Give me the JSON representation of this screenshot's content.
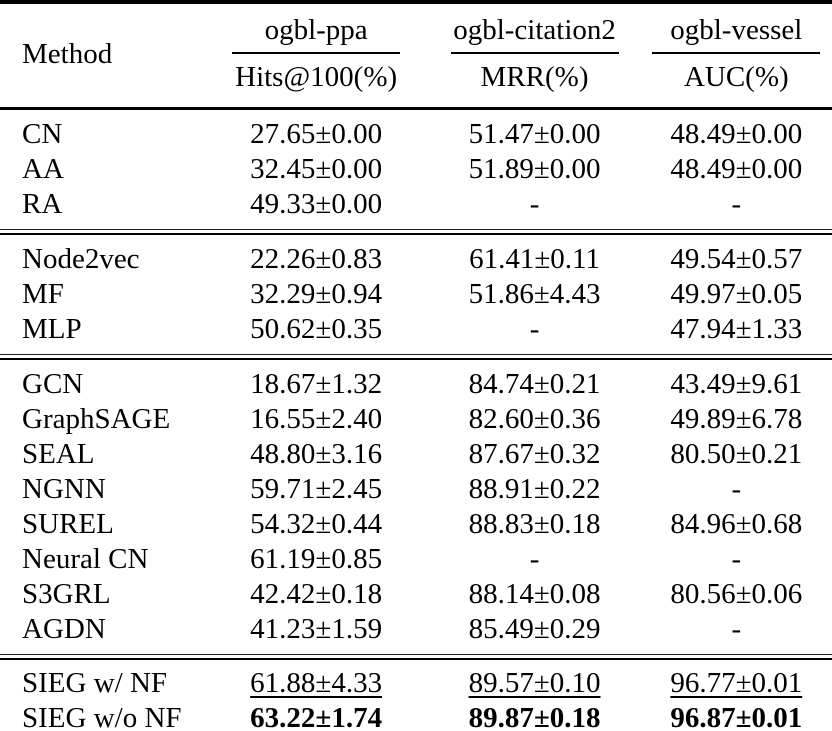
{
  "page": {
    "background_color": "#ffffff",
    "text_color": "#000000",
    "rule_color": "#000000"
  },
  "table": {
    "header": {
      "method_label": "Method",
      "groups": [
        {
          "dataset": "ogbl-ppa",
          "metric": "Hits@100(%)"
        },
        {
          "dataset": "ogbl-citation2",
          "metric": "MRR(%)"
        },
        {
          "dataset": "ogbl-vessel",
          "metric": "AUC(%)"
        }
      ]
    },
    "groups": [
      {
        "rows": [
          {
            "method": "CN",
            "values": [
              "27.65±0.00",
              "51.47±0.00",
              "48.49±0.00"
            ]
          },
          {
            "method": "AA",
            "values": [
              "32.45±0.00",
              "51.89±0.00",
              "48.49±0.00"
            ]
          },
          {
            "method": "RA",
            "values": [
              "49.33±0.00",
              "-",
              "-"
            ]
          }
        ]
      },
      {
        "rows": [
          {
            "method": "Node2vec",
            "values": [
              "22.26±0.83",
              "61.41±0.11",
              "49.54±0.57"
            ]
          },
          {
            "method": "MF",
            "values": [
              "32.29±0.94",
              "51.86±4.43",
              "49.97±0.05"
            ]
          },
          {
            "method": "MLP",
            "values": [
              "50.62±0.35",
              "-",
              "47.94±1.33"
            ]
          }
        ]
      },
      {
        "rows": [
          {
            "method": "GCN",
            "values": [
              "18.67±1.32",
              "84.74±0.21",
              "43.49±9.61"
            ]
          },
          {
            "method": "GraphSAGE",
            "values": [
              "16.55±2.40",
              "82.60±0.36",
              "49.89±6.78"
            ]
          },
          {
            "method": "SEAL",
            "values": [
              "48.80±3.16",
              "87.67±0.32",
              "80.50±0.21"
            ]
          },
          {
            "method": "NGNN",
            "values": [
              "59.71±2.45",
              "88.91±0.22",
              "-"
            ]
          },
          {
            "method": "SUREL",
            "values": [
              "54.32±0.44",
              "88.83±0.18",
              "84.96±0.68"
            ]
          },
          {
            "method": "Neural CN",
            "values": [
              "61.19±0.85",
              "-",
              "-"
            ]
          },
          {
            "method": "S3GRL",
            "values": [
              "42.42±0.18",
              "88.14±0.08",
              "80.56±0.06"
            ]
          },
          {
            "method": "AGDN",
            "values": [
              "41.23±1.59",
              "85.49±0.29",
              "-"
            ]
          }
        ]
      },
      {
        "rows": [
          {
            "method": "SIEG w/ NF",
            "values": [
              "61.88±4.33",
              "89.57±0.10",
              "96.77±0.01"
            ],
            "emphasis": "underline"
          },
          {
            "method": "SIEG w/o NF",
            "values": [
              "63.22±1.74",
              "89.87±0.18",
              "96.87±0.01"
            ],
            "emphasis": "bold"
          }
        ]
      }
    ]
  }
}
